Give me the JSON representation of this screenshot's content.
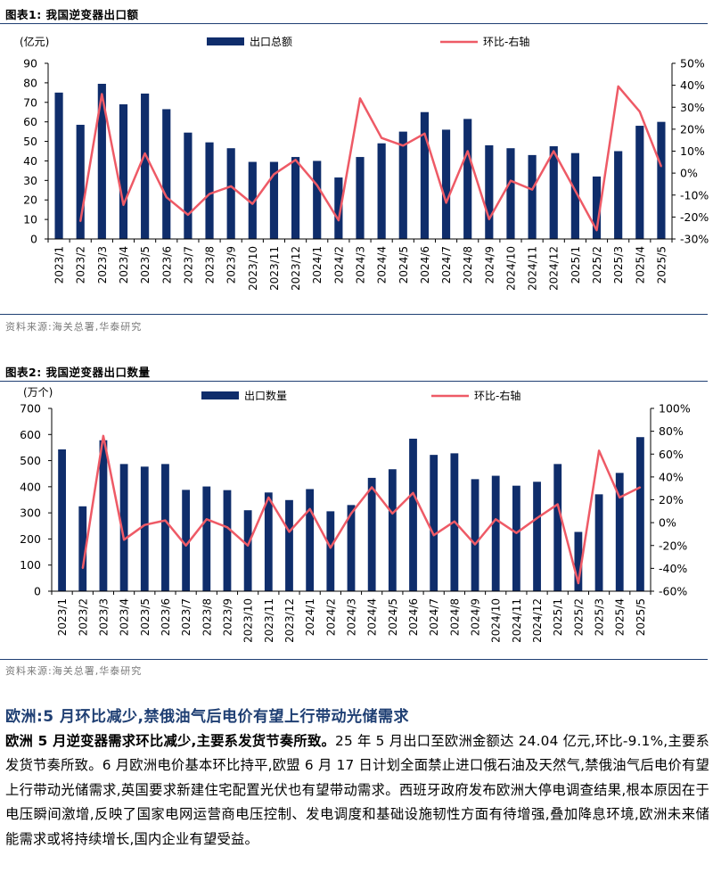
{
  "figure1": {
    "title": "图表1:  我国逆变器出口额",
    "source": "资料来源:海关总署,华泰研究",
    "chart_data": {
      "type": "bar+line",
      "unit_label": "(亿元)",
      "legend": {
        "bar": "出口总额",
        "line": "环比-右轴"
      },
      "categories": [
        "2023/1",
        "2023/2",
        "2023/3",
        "2023/4",
        "2023/5",
        "2023/6",
        "2023/7",
        "2023/8",
        "2023/9",
        "2023/10",
        "2023/11",
        "2023/12",
        "2024/1",
        "2024/2",
        "2024/3",
        "2024/4",
        "2024/5",
        "2024/6",
        "2024/7",
        "2024/8",
        "2024/9",
        "2024/10",
        "2024/11",
        "2024/12",
        "2025/1",
        "2025/2",
        "2025/3",
        "2025/4",
        "2025/5"
      ],
      "bar_values": [
        75,
        58.5,
        79.5,
        69,
        74.5,
        66.5,
        54.5,
        49.5,
        46.5,
        39.5,
        39.5,
        42,
        40,
        31.5,
        42,
        49,
        55,
        65,
        56,
        61.5,
        48,
        46.5,
        43,
        47.5,
        44,
        32,
        45,
        58,
        60
      ],
      "line_values": [
        -22,
        36,
        -14.5,
        9,
        -11,
        -19,
        -9.5,
        -6,
        -14,
        -0.5,
        6,
        -5.5,
        -21.5,
        34,
        16,
        12.5,
        18,
        -13.5,
        10,
        -21,
        -3.5,
        -7.5,
        10,
        -8,
        -26,
        39.5,
        28,
        3
      ],
      "y_left": {
        "min": 0,
        "max": 90,
        "ticks": [
          "0",
          "10",
          "20",
          "30",
          "40",
          "50",
          "60",
          "70",
          "80",
          "90"
        ]
      },
      "y_right": {
        "min": -30,
        "max": 50,
        "ticks": [
          "-30%",
          "-20%",
          "-10%",
          "0%",
          "10%",
          "20%",
          "30%",
          "40%",
          "50%"
        ]
      }
    }
  },
  "figure2": {
    "title": "图表2:  我国逆变器出口数量",
    "source": "资料来源:海关总署,华泰研究",
    "chart_data": {
      "type": "bar+line",
      "unit_label": "(万个)",
      "legend": {
        "bar": "出口数量",
        "line": "环比-右轴"
      },
      "categories": [
        "2023/1",
        "2023/2",
        "2023/3",
        "2023/4",
        "2023/5",
        "2023/6",
        "2023/7",
        "2023/8",
        "2023/9",
        "2023/10",
        "2023/11",
        "2023/12",
        "2024/1",
        "2024/2",
        "2024/3",
        "2024/4",
        "2024/5",
        "2024/6",
        "2024/7",
        "2024/8",
        "2024/9",
        "2024/10",
        "2024/11",
        "2024/12",
        "2025/1",
        "2025/2",
        "2025/3",
        "2025/4",
        "2025/5"
      ],
      "bar_values": [
        543,
        325,
        578,
        487,
        477,
        487,
        388,
        401,
        387,
        310,
        378,
        349,
        391,
        306,
        330,
        434,
        467,
        584,
        522,
        528,
        429,
        442,
        404,
        419,
        487,
        227,
        371,
        453,
        590
      ],
      "line_values": [
        -40,
        76,
        -15,
        -2,
        2,
        -20,
        3,
        -4,
        -20,
        22,
        -8,
        12,
        -22,
        8,
        31,
        8,
        26,
        -11,
        1,
        -19,
        3,
        -9,
        4,
        16,
        -53,
        63,
        22,
        31
      ],
      "y_left": {
        "min": 0,
        "max": 700,
        "ticks": [
          "0",
          "100",
          "200",
          "300",
          "400",
          "500",
          "600",
          "700"
        ]
      },
      "y_right": {
        "min": -60,
        "max": 100,
        "ticks": [
          "-60%",
          "-40%",
          "-20%",
          "0%",
          "20%",
          "40%",
          "60%",
          "80%",
          "100%"
        ]
      }
    }
  },
  "section": {
    "heading": "欧洲:5 月环比减少,禁俄油气后电价有望上行带动光储需求",
    "lead_bold": "欧洲 5 月逆变器需求环比减少,主要系发货节奏所致。",
    "body": "25 年 5 月出口至欧洲金额达 24.04 亿元,环比-9.1%,主要系发货节奏所致。6 月欧洲电价基本环比持平,欧盟 6 月 17 日计划全面禁止进口俄石油及天然气,禁俄油气后电价有望上行带动光储需求,英国要求新建住宅配置光伏也有望带动需求。西班牙政府发布欧洲大停电调查结果,根本原因在于电压瞬间激增,反映了国家电网运营商电压控制、发电调度和基础设施韧性方面有待增强,叠加降息环境,欧洲未来储能需求或将持续增长,国内企业有望受益。"
  },
  "colors": {
    "bar": "#0f2d6b",
    "line": "#ee5a66",
    "rule": "#1f3f73"
  }
}
